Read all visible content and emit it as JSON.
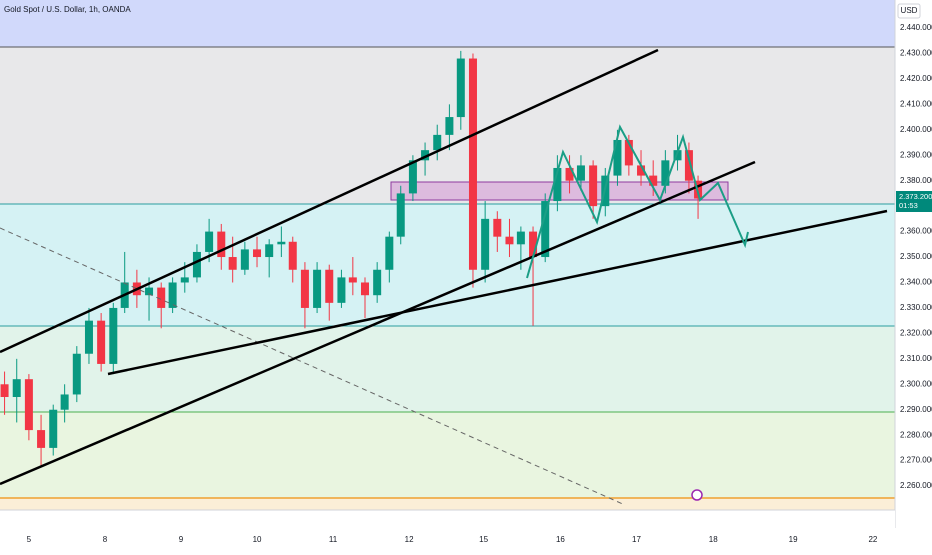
{
  "chart_data": {
    "type": "candlestick",
    "title": "Gold Spot / U.S. Dollar, 1h, OANDA",
    "currency": "USD",
    "x": [
      -0.32,
      -0.16,
      0,
      0.16,
      0.32,
      0.47,
      0.63,
      0.79,
      0.95,
      1.11,
      1.26,
      1.42,
      1.58,
      1.74,
      1.89,
      2.05,
      2.21,
      2.37,
      2.53,
      2.68,
      2.84,
      3.0,
      3.16,
      3.32,
      3.47,
      3.63,
      3.79,
      3.95,
      4.11,
      4.26,
      4.42,
      4.58,
      4.74,
      4.89,
      5.05,
      5.21,
      5.37,
      5.53,
      5.68,
      5.84,
      6.0,
      6.16,
      6.32,
      6.47,
      6.63,
      6.79,
      6.95,
      7.11,
      7.26,
      7.42,
      7.58,
      7.74,
      7.89,
      8.05,
      8.21,
      8.37,
      8.53,
      8.68,
      8.8
    ],
    "open": [
      2300,
      2295,
      2302,
      2282,
      2275,
      2290,
      2296,
      2312,
      2325,
      2308,
      2330,
      2340,
      2335,
      2338,
      2330,
      2340,
      2342,
      2352,
      2360,
      2350,
      2345,
      2353,
      2350,
      2355,
      2356,
      2345,
      2330,
      2345,
      2332,
      2342,
      2340,
      2335,
      2345,
      2358,
      2375,
      2388,
      2392,
      2398,
      2405,
      2428,
      2345,
      2365,
      2358,
      2355,
      2360,
      2350,
      2372,
      2385,
      2380,
      2386,
      2370,
      2382,
      2396,
      2386,
      2382,
      2378,
      2388,
      2392,
      2380
    ],
    "high": [
      2305,
      2310,
      2304,
      2288,
      2292,
      2300,
      2315,
      2330,
      2328,
      2332,
      2352,
      2345,
      2342,
      2340,
      2342,
      2348,
      2355,
      2365,
      2363,
      2358,
      2356,
      2358,
      2357,
      2362,
      2358,
      2348,
      2348,
      2347,
      2345,
      2350,
      2342,
      2348,
      2360,
      2378,
      2390,
      2395,
      2402,
      2410,
      2431,
      2430,
      2372,
      2368,
      2365,
      2362,
      2362,
      2375,
      2390,
      2390,
      2390,
      2388,
      2385,
      2400,
      2398,
      2392,
      2388,
      2392,
      2398,
      2395,
      2382
    ],
    "low": [
      2288,
      2285,
      2278,
      2268,
      2272,
      2285,
      2293,
      2308,
      2305,
      2304,
      2328,
      2330,
      2325,
      2322,
      2328,
      2336,
      2340,
      2348,
      2345,
      2340,
      2343,
      2346,
      2342,
      2350,
      2340,
      2322,
      2328,
      2325,
      2330,
      2335,
      2326,
      2332,
      2340,
      2355,
      2372,
      2382,
      2388,
      2392,
      2400,
      2338,
      2340,
      2352,
      2350,
      2345,
      2323,
      2348,
      2368,
      2375,
      2376,
      2365,
      2366,
      2378,
      2382,
      2378,
      2374,
      2375,
      2384,
      2375,
      2365
    ],
    "close": [
      2295,
      2302,
      2282,
      2275,
      2290,
      2296,
      2312,
      2325,
      2308,
      2330,
      2340,
      2335,
      2338,
      2330,
      2340,
      2342,
      2352,
      2360,
      2350,
      2345,
      2353,
      2350,
      2355,
      2356,
      2345,
      2330,
      2345,
      2332,
      2342,
      2340,
      2335,
      2345,
      2358,
      2375,
      2388,
      2392,
      2398,
      2405,
      2428,
      2345,
      2365,
      2358,
      2355,
      2360,
      2350,
      2372,
      2385,
      2380,
      2386,
      2370,
      2382,
      2396,
      2386,
      2382,
      2378,
      2388,
      2392,
      2380,
      2373
    ],
    "up_color": "#089981",
    "down_color": "#f23645",
    "xlim": [
      -0.38,
      11.39
    ],
    "ylim": [
      2250.6,
      2451
    ],
    "xticks": [
      {
        "value": 0,
        "label": "5"
      },
      {
        "value": 1,
        "label": "8"
      },
      {
        "value": 2,
        "label": "9"
      },
      {
        "value": 3.0,
        "label": "10"
      },
      {
        "value": 4.0,
        "label": "11"
      },
      {
        "value": 5.0,
        "label": "12"
      },
      {
        "value": 5.98,
        "label": "15"
      },
      {
        "value": 6.99,
        "label": "16"
      },
      {
        "value": 7.99,
        "label": "17"
      },
      {
        "value": 9.0,
        "label": "18"
      },
      {
        "value": 10.05,
        "label": "19"
      },
      {
        "value": 11.1,
        "label": "22"
      }
    ],
    "yticks": [
      {
        "value": 2260,
        "label": "2.260.000"
      },
      {
        "value": 2270,
        "label": "2.270.000"
      },
      {
        "value": 2280,
        "label": "2.280.000"
      },
      {
        "value": 2290,
        "label": "2.290.000"
      },
      {
        "value": 2300,
        "label": "2.300.000"
      },
      {
        "value": 2310,
        "label": "2.310.000"
      },
      {
        "value": 2320,
        "label": "2.320.000"
      },
      {
        "value": 2330,
        "label": "2.330.000"
      },
      {
        "value": 2340,
        "label": "2.340.000"
      },
      {
        "value": 2350,
        "label": "2.350.000"
      },
      {
        "value": 2360,
        "label": "2.360.000"
      },
      {
        "value": 2370,
        "label": "2.370.000"
      },
      {
        "value": 2380,
        "label": "2.380.000"
      },
      {
        "value": 2390,
        "label": "2.390.000"
      },
      {
        "value": 2400,
        "label": "2.400.000"
      },
      {
        "value": 2410,
        "label": "2.410.000"
      },
      {
        "value": 2420,
        "label": "2.420.000"
      },
      {
        "value": 2430,
        "label": "2.430.000"
      },
      {
        "value": 2440,
        "label": "2.440.000"
      }
    ],
    "last_price": {
      "value": 2373.2,
      "label": "2.373.200"
    },
    "countdown": "01:53"
  }
}
